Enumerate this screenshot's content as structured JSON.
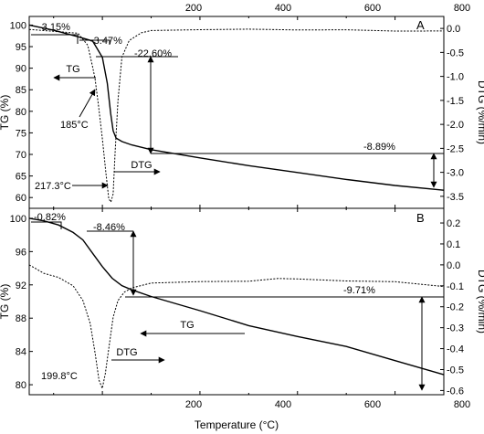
{
  "figure": {
    "xlabel": "Temperature (°C)",
    "x_top_ticks": [
      "200",
      "400",
      "600",
      "800"
    ],
    "x_bottom_ticks": [
      "200",
      "400",
      "600",
      "800"
    ]
  },
  "chart_data": [
    {
      "type": "line",
      "panel_label": "A",
      "xlim": [
        50,
        900
      ],
      "ylim": [
        57.5,
        102
      ],
      "y2lim": [
        -3.75,
        0.25
      ],
      "ylabel": "TG (%)",
      "y2label": "DTG (%/min)",
      "yticks": [
        "60",
        "65",
        "70",
        "75",
        "80",
        "85",
        "90",
        "95",
        "100"
      ],
      "y2ticks": [
        "0.0",
        "-0.5",
        "-1.0",
        "-1.5",
        "-2.0",
        "-2.5",
        "-3.0",
        "-3.5"
      ],
      "grid": false,
      "series": [
        {
          "name": "TG",
          "axis": "left",
          "style": "solid",
          "x": [
            50,
            100,
            150,
            180,
            200,
            210,
            217,
            222,
            228,
            240,
            260,
            300,
            400,
            500,
            600,
            700,
            800,
            900
          ],
          "y": [
            100,
            98.8,
            97.3,
            96.3,
            92.5,
            86.5,
            79.5,
            75.5,
            73.8,
            73.0,
            72.2,
            71.1,
            69.2,
            67.4,
            65.8,
            64.2,
            62.8,
            61.7
          ]
        },
        {
          "name": "DTG",
          "axis": "right",
          "style": "dotted",
          "x": [
            50,
            100,
            150,
            170,
            180,
            185,
            192,
            200,
            207,
            213,
            217.3,
            222,
            226,
            232,
            240,
            255,
            280,
            300,
            400,
            500,
            600,
            700,
            800,
            900
          ],
          "y": [
            -0.02,
            -0.06,
            -0.1,
            -0.35,
            -0.8,
            -1.05,
            -1.6,
            -2.3,
            -3.0,
            -3.55,
            -3.62,
            -3.45,
            -2.6,
            -1.5,
            -0.6,
            -0.25,
            -0.1,
            -0.03,
            -0.03,
            -0.03,
            -0.04,
            -0.02,
            -0.04,
            -0.05
          ]
        }
      ],
      "annotations": {
        "loss_first": "-3.15%",
        "loss_second": "-3.47%",
        "loss_third": "-22.60%",
        "loss_fourth": "-8.89%",
        "peak_shoulder": "185°C",
        "peak_main": "217.3°C",
        "tg_arrow_label": "TG",
        "dtg_arrow_label": "DTG"
      }
    },
    {
      "type": "line",
      "panel_label": "B",
      "xlim": [
        50,
        900
      ],
      "ylim": [
        78.8,
        101.2
      ],
      "y2lim": [
        -0.62,
        0.27
      ],
      "ylabel": "TG (%)",
      "y2label": "DTG (%/min)",
      "yticks": [
        "80",
        "84",
        "88",
        "92",
        "96",
        "100"
      ],
      "y2ticks": [
        "0.2",
        "0.1",
        "0.0",
        "-0.1",
        "-0.2",
        "-0.3",
        "-0.4",
        "-0.5",
        "-0.6"
      ],
      "grid": false,
      "series": [
        {
          "name": "TG",
          "axis": "left",
          "style": "solid",
          "x": [
            50,
            80,
            110,
            140,
            160,
            180,
            200,
            220,
            240,
            260,
            300,
            400,
            500,
            600,
            700,
            800,
            900
          ],
          "y": [
            100,
            99.7,
            99.2,
            98.3,
            97.4,
            95.8,
            94.2,
            92.8,
            91.9,
            91.4,
            90.6,
            88.9,
            87.1,
            85.8,
            84.6,
            82.9,
            81.2
          ]
        },
        {
          "name": "DTG",
          "axis": "right",
          "style": "dotted",
          "x": [
            50,
            80,
            110,
            140,
            160,
            175,
            185,
            193,
            199.8,
            206,
            213,
            222,
            232,
            245,
            260,
            300,
            400,
            500,
            560,
            600,
            700,
            800,
            900
          ],
          "y": [
            0.0,
            -0.04,
            -0.06,
            -0.1,
            -0.17,
            -0.28,
            -0.42,
            -0.55,
            -0.59,
            -0.52,
            -0.4,
            -0.25,
            -0.17,
            -0.13,
            -0.11,
            -0.09,
            -0.08,
            -0.075,
            -0.065,
            -0.07,
            -0.08,
            -0.08,
            -0.1
          ]
        }
      ],
      "annotations": {
        "loss_first": "-0.82%",
        "loss_second": "-8.46%",
        "loss_third": "-9.71%",
        "peak_main": "199.8°C",
        "tg_arrow_label": "TG",
        "dtg_arrow_label": "DTG"
      }
    }
  ]
}
